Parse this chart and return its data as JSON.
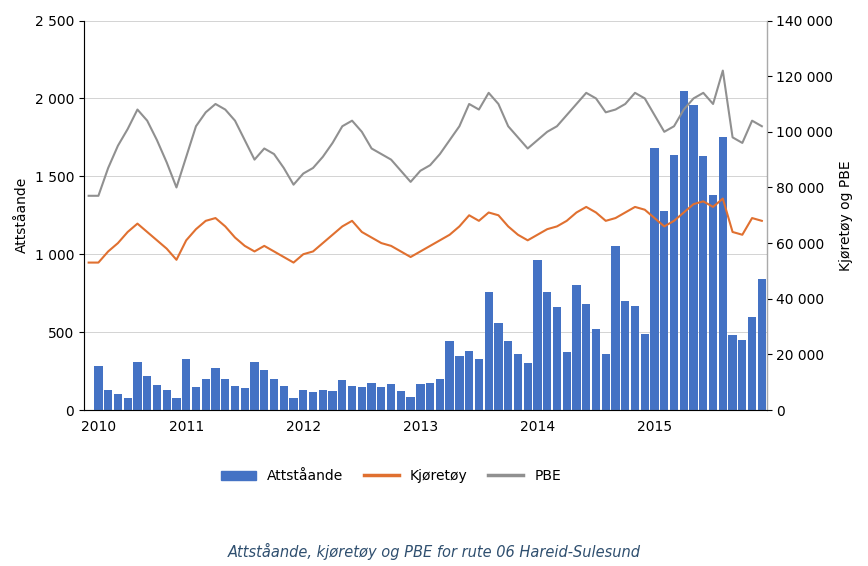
{
  "title": "Attståande, kjøretøy og PBE for rute 06 Hareid-Sulesund",
  "ylabel_left": "Attståande",
  "ylabel_right": "Kjøretøy og PBE",
  "legend_labels": [
    "Attståande",
    "Kjøretøy",
    "PBE"
  ],
  "bar_color": "#4472C4",
  "line_kjoretoy_color": "#E07030",
  "line_pbe_color": "#909090",
  "ylim_left": [
    0,
    2500
  ],
  "ylim_right": [
    0,
    140000
  ],
  "yticks_left": [
    0,
    500,
    1000,
    1500,
    2000,
    2500
  ],
  "yticks_right": [
    0,
    20000,
    40000,
    60000,
    80000,
    100000,
    120000,
    140000
  ],
  "background_color": "#ffffff",
  "attstående": [
    0,
    280,
    130,
    100,
    80,
    310,
    220,
    160,
    130,
    80,
    330,
    150,
    200,
    270,
    200,
    155,
    140,
    310,
    260,
    200,
    155,
    80,
    130,
    115,
    130,
    120,
    195,
    155,
    145,
    175,
    145,
    165,
    120,
    85,
    170,
    175,
    200,
    440,
    350,
    380,
    330,
    760,
    560,
    440,
    360,
    300,
    960,
    760,
    660,
    370,
    800,
    680,
    520,
    360,
    1050,
    700,
    670,
    485,
    1680,
    1280,
    1640,
    2050,
    1960,
    1630,
    1380,
    1750,
    480,
    450,
    600,
    840
  ],
  "kjøretøy": [
    53000,
    53000,
    57000,
    60000,
    64000,
    67000,
    64000,
    61000,
    58000,
    54000,
    61000,
    65000,
    68000,
    69000,
    66000,
    62000,
    59000,
    57000,
    59000,
    57000,
    55000,
    53000,
    56000,
    57000,
    60000,
    63000,
    66000,
    68000,
    64000,
    62000,
    60000,
    59000,
    57000,
    55000,
    57000,
    59000,
    61000,
    63000,
    66000,
    70000,
    68000,
    71000,
    70000,
    66000,
    63000,
    61000,
    63000,
    65000,
    66000,
    68000,
    71000,
    73000,
    71000,
    68000,
    69000,
    71000,
    73000,
    72000,
    69000,
    66000,
    68000,
    71000,
    74000,
    75000,
    73000,
    76000,
    64000,
    63000,
    69000,
    68000
  ],
  "pbe": [
    77000,
    77000,
    87000,
    95000,
    101000,
    108000,
    104000,
    97000,
    89000,
    80000,
    91000,
    102000,
    107000,
    110000,
    108000,
    104000,
    97000,
    90000,
    94000,
    92000,
    87000,
    81000,
    85000,
    87000,
    91000,
    96000,
    102000,
    104000,
    100000,
    94000,
    92000,
    90000,
    86000,
    82000,
    86000,
    88000,
    92000,
    97000,
    102000,
    110000,
    108000,
    114000,
    110000,
    102000,
    98000,
    94000,
    97000,
    100000,
    102000,
    106000,
    110000,
    114000,
    112000,
    107000,
    108000,
    110000,
    114000,
    112000,
    106000,
    100000,
    102000,
    108000,
    112000,
    114000,
    110000,
    122000,
    98000,
    96000,
    104000,
    102000
  ],
  "n_months": 69,
  "xtick_labels": [
    "2010",
    "2011",
    "2012",
    "2013",
    "2014",
    "2015"
  ],
  "xtick_positions": [
    1,
    10,
    22,
    34,
    46,
    58
  ]
}
